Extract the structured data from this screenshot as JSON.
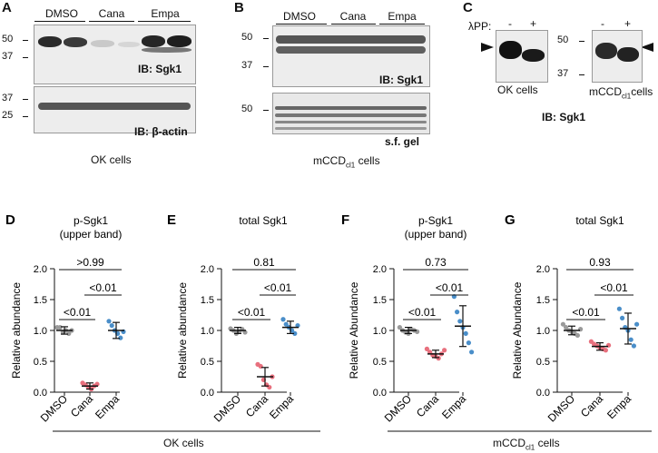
{
  "panel_labels": {
    "A": "A",
    "B": "B",
    "C": "C",
    "D": "D",
    "E": "E",
    "F": "F",
    "G": "G"
  },
  "panel_a": {
    "lanes": [
      "DMSO",
      "Cana",
      "Empa"
    ],
    "mw_top": [
      "50",
      "37"
    ],
    "mw_bottom": [
      "37",
      "25"
    ],
    "ib_top": "IB: Sgk1",
    "ib_bottom_prefix": "IB: ",
    "ib_bottom_greek": "β",
    "ib_bottom_suffix": "-actin",
    "caption": "OK cells"
  },
  "panel_b": {
    "lanes": [
      "DMSO",
      "Cana",
      "Empa"
    ],
    "mw_top": [
      "50",
      "37"
    ],
    "mw_bottom": [
      "50"
    ],
    "ib_top": "IB: Sgk1",
    "ib_bottom": "s.f. gel",
    "caption_main": "mCCD",
    "caption_sub": "cl1",
    "caption_tail": " cells"
  },
  "panel_c": {
    "lpp_label": "λPP:",
    "lpp_minus": "-",
    "lpp_plus": "+",
    "mw": [
      "50",
      "37"
    ],
    "left_caption": "OK cells",
    "right_caption_main": "mCCD",
    "right_caption_sub": "cl1",
    "right_caption_tail": "cells",
    "ib": "IB: Sgk1"
  },
  "chart_data": [
    {
      "type": "scatter",
      "panel": "D",
      "title": "p-Sgk1",
      "subtitle": "(upper band)",
      "ylabel": "Relative abundance",
      "categories": [
        "DMSO",
        "Cana",
        "Empa"
      ],
      "ylim": [
        0,
        2.0
      ],
      "yticks": [
        "0.0",
        "0.5",
        "1.0",
        "1.5",
        "2.0"
      ],
      "means": [
        1.0,
        0.1,
        1.0
      ],
      "sd": [
        0.06,
        0.05,
        0.13
      ],
      "points": [
        [
          1.05,
          1.05,
          0.97,
          1.0,
          0.95,
          1.0
        ],
        [
          0.15,
          0.12,
          0.08,
          0.05,
          0.1,
          0.13
        ],
        [
          1.15,
          1.08,
          1.0,
          0.95,
          0.88,
          0.98
        ]
      ],
      "comparisons": [
        {
          "groups": [
            "DMSO",
            "Cana"
          ],
          "label": "<0.01"
        },
        {
          "groups": [
            "Cana",
            "Empa"
          ],
          "label": "<0.01"
        },
        {
          "groups": [
            "DMSO",
            "Empa"
          ],
          "label": ">0.99"
        }
      ]
    },
    {
      "type": "scatter",
      "panel": "E",
      "title": "total Sgk1",
      "subtitle": "",
      "ylabel": "Relative abundance",
      "categories": [
        "DMSO",
        "Cana",
        "Empa"
      ],
      "ylim": [
        0,
        2.0
      ],
      "yticks": [
        "0.0",
        "0.5",
        "1.0",
        "1.5",
        "2.0"
      ],
      "means": [
        1.0,
        0.25,
        1.05
      ],
      "sd": [
        0.05,
        0.15,
        0.1
      ],
      "points": [
        [
          1.03,
          1.0,
          0.95,
          0.98,
          1.02,
          0.97
        ],
        [
          0.45,
          0.42,
          0.2,
          0.12,
          0.08,
          0.25
        ],
        [
          1.18,
          1.1,
          1.05,
          1.0,
          0.95,
          1.08
        ]
      ],
      "comparisons": [
        {
          "groups": [
            "DMSO",
            "Cana"
          ],
          "label": "<0.01"
        },
        {
          "groups": [
            "Cana",
            "Empa"
          ],
          "label": "<0.01"
        },
        {
          "groups": [
            "DMSO",
            "Empa"
          ],
          "label": "0.81"
        }
      ]
    },
    {
      "type": "scatter",
      "panel": "F",
      "title": "p-Sgk1",
      "subtitle": "(upper band)",
      "ylabel": "Relative Abundance",
      "categories": [
        "DMSO",
        "Cana",
        "Empa"
      ],
      "ylim": [
        0,
        2.0
      ],
      "yticks": [
        "0.0",
        "0.5",
        "1.0",
        "1.5",
        "2.0"
      ],
      "means": [
        1.0,
        0.62,
        1.07
      ],
      "sd": [
        0.05,
        0.06,
        0.33
      ],
      "points": [
        [
          1.05,
          1.0,
          0.97,
          0.95,
          1.02,
          1.0,
          0.98
        ],
        [
          0.7,
          0.65,
          0.6,
          0.58,
          0.55,
          0.62,
          0.68
        ],
        [
          1.55,
          1.3,
          1.15,
          1.05,
          0.95,
          0.8,
          0.65
        ]
      ],
      "comparisons": [
        {
          "groups": [
            "DMSO",
            "Cana"
          ],
          "label": "<0.01"
        },
        {
          "groups": [
            "Cana",
            "Empa"
          ],
          "label": "<0.01"
        },
        {
          "groups": [
            "DMSO",
            "Empa"
          ],
          "label": "0.73"
        }
      ]
    },
    {
      "type": "scatter",
      "panel": "G",
      "title": "total Sgk1",
      "subtitle": "",
      "ylabel": "Relative Abundance",
      "categories": [
        "DMSO",
        "Cana",
        "Empa"
      ],
      "ylim": [
        0,
        2.0
      ],
      "yticks": [
        "0.0",
        "0.5",
        "1.0",
        "1.5",
        "2.0"
      ],
      "means": [
        1.0,
        0.74,
        1.03
      ],
      "sd": [
        0.07,
        0.06,
        0.25
      ],
      "points": [
        [
          1.1,
          1.05,
          1.0,
          0.98,
          0.95,
          0.92,
          1.02
        ],
        [
          0.82,
          0.78,
          0.75,
          0.72,
          0.7,
          0.68,
          0.76
        ],
        [
          1.35,
          1.2,
          1.05,
          1.0,
          0.85,
          0.75,
          1.1
        ]
      ],
      "comparisons": [
        {
          "groups": [
            "DMSO",
            "Cana"
          ],
          "label": "<0.01"
        },
        {
          "groups": [
            "Cana",
            "Empa"
          ],
          "label": "<0.01"
        },
        {
          "groups": [
            "DMSO",
            "Empa"
          ],
          "label": "0.93"
        }
      ]
    }
  ],
  "colors": {
    "DMSO": "#9a9a9a",
    "Cana": "#e8707e",
    "Empa": "#4a8ec9"
  },
  "bottom": {
    "ok_label": "OK cells",
    "mccd_main": "mCCD",
    "mccd_sub": "cl1",
    "mccd_tail": " cells"
  }
}
